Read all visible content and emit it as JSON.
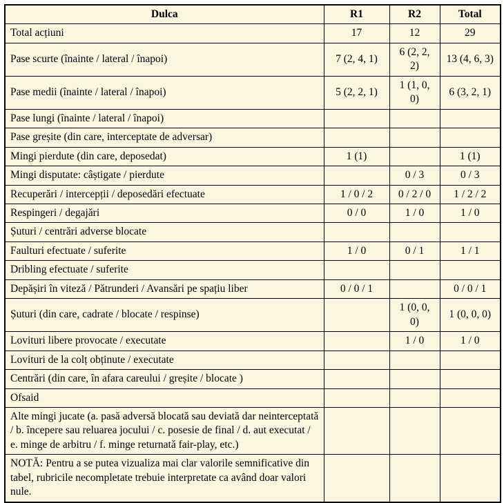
{
  "colors": {
    "cell_background": "#fcf6e0",
    "border": "#000000",
    "text": "#000000",
    "page_background": "#ffffff"
  },
  "table": {
    "headers": [
      "Dulca",
      "R1",
      "R2",
      "Total"
    ],
    "rows": [
      {
        "label": "Total acțiuni",
        "r1": "17",
        "r2": "12",
        "total": "29"
      },
      {
        "label": "Pase scurte (înainte / lateral / înapoi)",
        "r1": "7 (2, 4, 1)",
        "r2": "6 (2, 2, 2)",
        "total": "13 (4, 6, 3)"
      },
      {
        "label": "Pase medii (înainte / lateral / înapoi)",
        "r1": "5 (2, 2, 1)",
        "r2": "1 (1, 0, 0)",
        "total": "6 (3, 2, 1)"
      },
      {
        "label": "Pase lungi (înainte / lateral / înapoi)",
        "r1": "",
        "r2": "",
        "total": ""
      },
      {
        "label": "Pase greșite (din care, interceptate de adversar)",
        "r1": "",
        "r2": "",
        "total": ""
      },
      {
        "label": "Mingi pierdute (din care, deposedat)",
        "r1": "1 (1)",
        "r2": "",
        "total": "1 (1)"
      },
      {
        "label": "Mingi disputate: câștigate / pierdute",
        "r1": "",
        "r2": "0 / 3",
        "total": "0 / 3"
      },
      {
        "label": "Recuperări / intercepții / deposedări efectuate",
        "r1": "1 / 0 / 2",
        "r2": "0 / 2 / 0",
        "total": "1 / 2 / 2"
      },
      {
        "label": "Respingeri / degajări",
        "r1": "0 / 0",
        "r2": "1 / 0",
        "total": "1 / 0"
      },
      {
        "label": "Șuturi / centrări adverse blocate",
        "r1": "",
        "r2": "",
        "total": ""
      },
      {
        "label": "Faulturi efectuate / suferite",
        "r1": "1 / 0",
        "r2": "0 / 1",
        "total": "1 / 1"
      },
      {
        "label": "Dribling efectuate / suferite",
        "r1": "",
        "r2": "",
        "total": ""
      },
      {
        "label": "Depășiri în viteză / Pătrunderi / Avansări pe spațiu liber",
        "r1": "0 / 0 / 1",
        "r2": "",
        "total": "0 / 0 / 1"
      },
      {
        "label": "Șuturi (din care, cadrate / blocate / respinse)",
        "r1": "",
        "r2": "1 (0, 0, 0)",
        "total": "1 (0, 0, 0)"
      },
      {
        "label": "Lovituri libere provocate / executate",
        "r1": "",
        "r2": "1 / 0",
        "total": "1 / 0"
      },
      {
        "label": "Lovituri de la colț obținute / executate",
        "r1": "",
        "r2": "",
        "total": ""
      },
      {
        "label": "Centrări (din care, în afara careului / greșite / blocate )",
        "r1": "",
        "r2": "",
        "total": ""
      },
      {
        "label": "Ofsaid",
        "r1": "",
        "r2": "",
        "total": ""
      },
      {
        "label": "Alte mingi jucate (a. pasă adversă blocată sau deviată dar neinterceptată / b. începere sau reluarea jocului / c. posesie de final / d. aut executat / e. minge de arbitru / f. minge returnată fair-play, etc.)",
        "r1": "",
        "r2": "",
        "total": ""
      },
      {
        "label": "NOTĂ: Pentru a se putea vizualiza mai clar valorile semnificative din tabel, rubricile necompletate trebuie interpretate ca având doar valori nule.",
        "r1": "",
        "r2": "",
        "total": ""
      }
    ]
  }
}
